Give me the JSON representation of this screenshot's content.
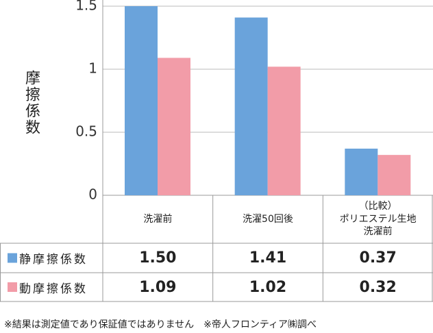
{
  "chart_data": {
    "type": "bar",
    "y_label": "摩擦係数",
    "categories": [
      "洗濯前",
      "洗濯50回後",
      "（比較）\nポリエステル生地\n洗濯前"
    ],
    "series": [
      {
        "name": "静摩擦係数",
        "color": "#6aa3db",
        "values": [
          1.5,
          1.41,
          0.37
        ],
        "value_labels": [
          "1.50",
          "1.41",
          "0.37"
        ]
      },
      {
        "name": "動摩擦係数",
        "color": "#f29ca8",
        "values": [
          1.09,
          1.02,
          0.32
        ],
        "value_labels": [
          "1.09",
          "1.02",
          "0.32"
        ]
      }
    ],
    "ylim": [
      0,
      1.5
    ],
    "yticks": [
      0,
      0.5,
      1,
      1.5
    ],
    "grid": true,
    "footnote": "※結果は測定値であり保証値ではありません　※帝人フロンティア㈱調べ"
  }
}
